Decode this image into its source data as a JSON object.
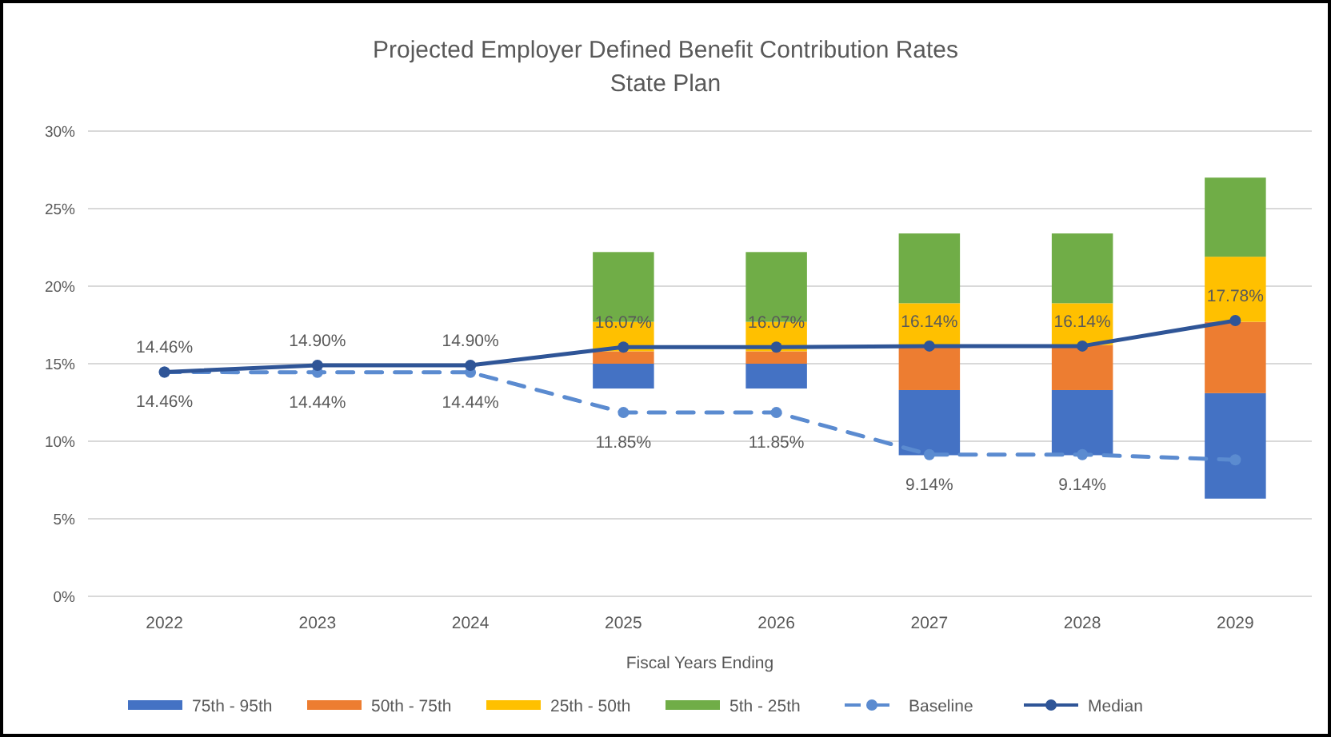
{
  "chart_data": {
    "type": "bar",
    "title": "Projected Employer Defined Benefit Contribution Rates",
    "subtitle": "State Plan",
    "xlabel": "Fiscal Years Ending",
    "categories": [
      "2022",
      "2023",
      "2024",
      "2025",
      "2026",
      "2027",
      "2028",
      "2029"
    ],
    "series": [
      {
        "name": "75th - 95th",
        "color": "#4472c4",
        "base": [
          null,
          null,
          null,
          13.4,
          13.4,
          9.1,
          9.1,
          6.3
        ],
        "values": [
          null,
          null,
          null,
          1.6,
          1.6,
          4.2,
          4.2,
          6.8
        ]
      },
      {
        "name": "50th - 75th",
        "color": "#ed7d31",
        "base": [
          null,
          null,
          null,
          15.0,
          15.0,
          13.3,
          13.3,
          13.1
        ],
        "values": [
          null,
          null,
          null,
          0.8,
          0.8,
          2.9,
          2.9,
          4.6
        ]
      },
      {
        "name": "25th - 50th",
        "color": "#ffc000",
        "base": [
          null,
          null,
          null,
          15.8,
          15.8,
          16.2,
          16.2,
          17.7
        ],
        "values": [
          null,
          null,
          null,
          1.9,
          1.9,
          2.7,
          2.7,
          4.2
        ]
      },
      {
        "name": "5th - 25th",
        "color": "#70ad47",
        "base": [
          null,
          null,
          null,
          17.7,
          17.7,
          18.9,
          18.9,
          21.9
        ],
        "values": [
          null,
          null,
          null,
          4.5,
          4.5,
          4.5,
          4.5,
          5.1
        ]
      },
      {
        "name": "Baseline",
        "type": "line",
        "color": "#5b8bd0",
        "line_style": "dashed",
        "marker": "circle",
        "values": [
          14.46,
          14.44,
          14.44,
          11.85,
          11.85,
          9.14,
          9.14,
          8.8
        ],
        "value_labels": [
          "14.46%",
          "14.44%",
          "14.44%",
          "11.85%",
          "11.85%",
          "9.14%",
          "9.14%",
          null
        ]
      },
      {
        "name": "Median",
        "type": "line",
        "color": "#2f5597",
        "line_style": "solid",
        "marker": "circle",
        "values": [
          14.46,
          14.9,
          14.9,
          16.07,
          16.07,
          16.14,
          16.14,
          17.78
        ],
        "value_labels": [
          "14.46%",
          "14.90%",
          "14.90%",
          "16.07%",
          "16.07%",
          "16.14%",
          "16.14%",
          "17.78%"
        ]
      }
    ],
    "ylim": [
      0,
      30
    ],
    "yticks": [
      {
        "value": 0,
        "label": "0%"
      },
      {
        "value": 5,
        "label": "5%"
      },
      {
        "value": 10,
        "label": "10%"
      },
      {
        "value": 15,
        "label": "15%"
      },
      {
        "value": 20,
        "label": "20%"
      },
      {
        "value": 25,
        "label": "25%"
      },
      {
        "value": 30,
        "label": "30%"
      }
    ],
    "grid": "y",
    "legend": "bottom"
  }
}
